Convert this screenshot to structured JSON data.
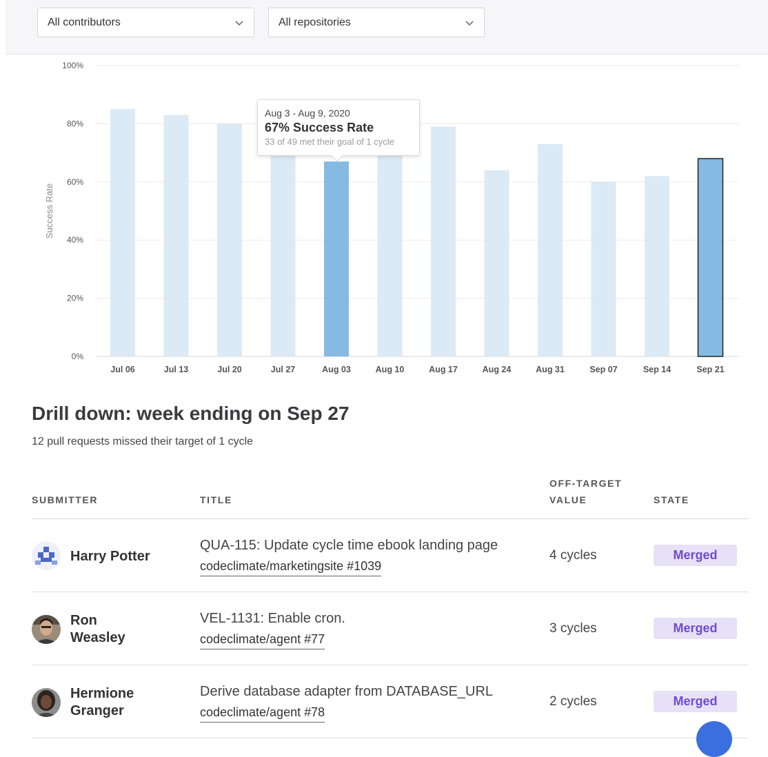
{
  "filters": {
    "contributors": "All contributors",
    "repositories": "All repositories"
  },
  "colors": {
    "bar_light": "#dceaf6",
    "bar_highlight": "#85bbe3",
    "badge_bg": "#e6e1f6",
    "badge_text": "#6e4ad6"
  },
  "chart_data": {
    "type": "bar",
    "ylabel": "Success Rate",
    "yticks": [
      "0%",
      "20%",
      "40%",
      "60%",
      "80%",
      "100%"
    ],
    "ylim": [
      0,
      100
    ],
    "grid": true,
    "categories": [
      "Jul 06",
      "Jul 13",
      "Jul 20",
      "Jul 27",
      "Aug 03",
      "Aug 10",
      "Aug 17",
      "Aug 24",
      "Aug 31",
      "Sep 07",
      "Sep 14",
      "Sep 21"
    ],
    "values": [
      85,
      83,
      80,
      70,
      67,
      70,
      79,
      64,
      73,
      60,
      62,
      68
    ],
    "highlighted": [
      "Aug 03",
      "Sep 21"
    ],
    "selected": "Sep 21",
    "tooltip": {
      "range": "Aug 3 - Aug 9, 2020",
      "rate": "67% Success Rate",
      "detail": "33 of 49 met their goal of 1 cycle"
    }
  },
  "drilldown": {
    "title": "Drill down: week ending on Sep 27",
    "subtitle": "12 pull requests missed their target of 1 cycle",
    "columns": {
      "submitter": "SUBMITTER",
      "title": "TITLE",
      "off_target_1": "OFF-TARGET",
      "off_target_2": "VALUE",
      "state": "STATE"
    },
    "rows": [
      {
        "submitter_line1": "Harry Potter",
        "submitter_line2": "",
        "title": "QUA-115: Update cycle time ebook landing page",
        "link": "codeclimate/marketingsite #1039",
        "value": "4 cycles",
        "state": "Merged"
      },
      {
        "submitter_line1": "Ron",
        "submitter_line2": "Weasley",
        "title": "VEL-1131: Enable cron.",
        "link": "codeclimate/agent #77",
        "value": "3 cycles",
        "state": "Merged"
      },
      {
        "submitter_line1": "Hermione",
        "submitter_line2": "Granger",
        "title": "Derive database adapter from DATABASE_URL",
        "link": "codeclimate/agent #78",
        "value": "2 cycles",
        "state": "Merged"
      }
    ]
  }
}
